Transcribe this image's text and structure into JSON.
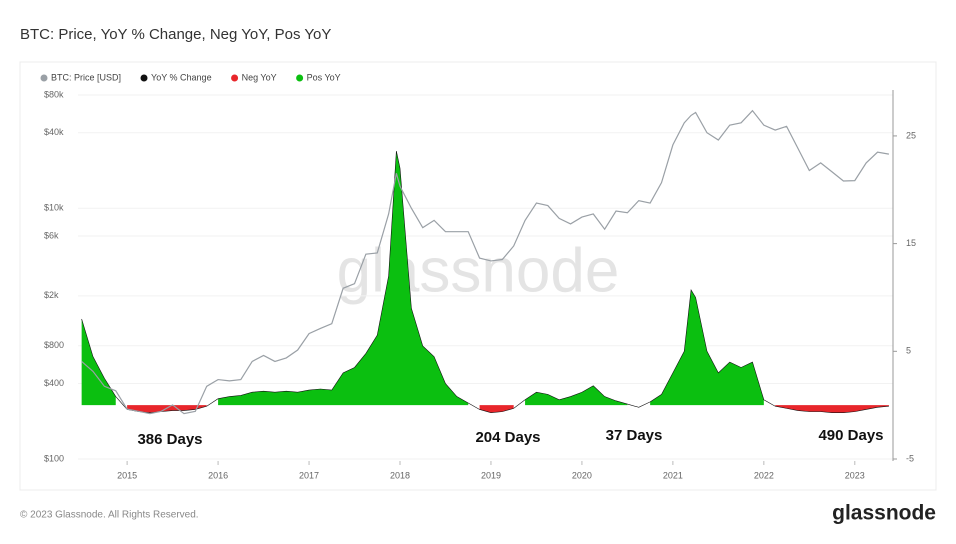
{
  "chart_data": {
    "type": "line",
    "title": "BTC: Price, YoY % Change, Neg YoY, Pos YoY",
    "x": [
      2014.5,
      2014.625,
      2014.75,
      2014.875,
      2015.0,
      2015.125,
      2015.25,
      2015.375,
      2015.5,
      2015.625,
      2015.75,
      2015.875,
      2016.0,
      2016.125,
      2016.25,
      2016.375,
      2016.5,
      2016.625,
      2016.75,
      2016.875,
      2017.0,
      2017.125,
      2017.25,
      2017.375,
      2017.5,
      2017.625,
      2017.75,
      2017.875,
      2017.96,
      2018.0,
      2018.125,
      2018.25,
      2018.375,
      2018.5,
      2018.625,
      2018.75,
      2018.875,
      2019.0,
      2019.125,
      2019.25,
      2019.375,
      2019.5,
      2019.625,
      2019.75,
      2019.875,
      2020.0,
      2020.125,
      2020.25,
      2020.375,
      2020.5,
      2020.625,
      2020.75,
      2020.875,
      2021.0,
      2021.125,
      2021.2,
      2021.25,
      2021.375,
      2021.5,
      2021.625,
      2021.75,
      2021.875,
      2022.0,
      2022.125,
      2022.25,
      2022.375,
      2022.5,
      2022.625,
      2022.75,
      2022.875,
      2023.0,
      2023.125,
      2023.25,
      2023.375
    ],
    "series": [
      {
        "name": "BTC: Price [USD]",
        "color": "#9aa0a6",
        "type": "line",
        "axis": "y",
        "values": [
          600,
          500,
          380,
          350,
          250,
          240,
          230,
          240,
          270,
          230,
          240,
          380,
          430,
          420,
          430,
          600,
          670,
          600,
          640,
          740,
          1000,
          1100,
          1200,
          2300,
          2500,
          4300,
          4400,
          9000,
          19000,
          15000,
          10000,
          7000,
          8000,
          6500,
          6500,
          6500,
          4000,
          3800,
          3900,
          5000,
          8000,
          11000,
          10500,
          8300,
          7500,
          8500,
          9000,
          6800,
          9500,
          9200,
          11500,
          11000,
          16000,
          32000,
          48000,
          55000,
          58000,
          40000,
          35000,
          46000,
          48000,
          60000,
          46000,
          42000,
          45000,
          30000,
          20000,
          23000,
          19500,
          16500,
          16600,
          23000,
          28000,
          27000
        ]
      },
      {
        "name": "YoY % Change",
        "color": "#111111",
        "type": "line",
        "axis": "y2",
        "values": [
          8.0,
          4.5,
          2.5,
          0.8,
          -0.4,
          -0.6,
          -0.7,
          -0.6,
          -0.5,
          -0.5,
          -0.4,
          -0.1,
          0.6,
          0.8,
          0.9,
          1.2,
          1.3,
          1.2,
          1.3,
          1.2,
          1.4,
          1.5,
          1.4,
          3.0,
          3.5,
          4.8,
          6.5,
          12,
          23.6,
          22,
          9,
          5.5,
          4.5,
          2.0,
          0.8,
          0.2,
          -0.4,
          -0.7,
          -0.6,
          -0.3,
          0.5,
          1.2,
          1.0,
          0.5,
          0.8,
          1.2,
          1.8,
          0.8,
          0.4,
          0.1,
          -0.2,
          0.3,
          1.0,
          3.0,
          5.0,
          10.7,
          10.0,
          5.0,
          3.0,
          4.0,
          3.5,
          4.0,
          0.5,
          -0.1,
          -0.3,
          -0.5,
          -0.6,
          -0.6,
          -0.7,
          -0.7,
          -0.6,
          -0.4,
          -0.2,
          -0.1
        ]
      },
      {
        "name": "Neg YoY",
        "color": "#e8262b",
        "type": "area",
        "axis": "y2",
        "values": [
          null,
          null,
          null,
          null,
          -0.4,
          -0.6,
          -0.7,
          -0.6,
          -0.5,
          -0.5,
          -0.4,
          -0.1,
          null,
          null,
          null,
          null,
          null,
          null,
          null,
          null,
          null,
          null,
          null,
          null,
          null,
          null,
          null,
          null,
          null,
          null,
          null,
          null,
          null,
          null,
          null,
          null,
          -0.4,
          -0.7,
          -0.6,
          -0.3,
          null,
          null,
          null,
          null,
          null,
          null,
          null,
          null,
          null,
          null,
          -0.2,
          null,
          null,
          null,
          null,
          null,
          null,
          null,
          null,
          null,
          null,
          null,
          null,
          -0.1,
          -0.3,
          -0.5,
          -0.6,
          -0.6,
          -0.7,
          -0.7,
          -0.6,
          -0.4,
          -0.2,
          -0.1
        ]
      },
      {
        "name": "Pos YoY",
        "color": "#0bbf10",
        "type": "area",
        "axis": "y2",
        "values": [
          8.0,
          4.5,
          2.5,
          0.8,
          null,
          null,
          null,
          null,
          null,
          null,
          null,
          null,
          0.6,
          0.8,
          0.9,
          1.2,
          1.3,
          1.2,
          1.3,
          1.2,
          1.4,
          1.5,
          1.4,
          3.0,
          3.5,
          4.8,
          6.5,
          12,
          23.6,
          22,
          9,
          5.5,
          4.5,
          2.0,
          0.8,
          0.2,
          null,
          null,
          null,
          null,
          0.5,
          1.2,
          1.0,
          0.5,
          0.8,
          1.2,
          1.8,
          0.8,
          0.4,
          0.1,
          null,
          0.3,
          1.0,
          3.0,
          5.0,
          10.7,
          10.0,
          5.0,
          3.0,
          4.0,
          3.5,
          4.0,
          0.5,
          null,
          null,
          null,
          null,
          null,
          null,
          null,
          null,
          null,
          null,
          null
        ]
      }
    ],
    "xlim": [
      2014.46,
      2023.42
    ],
    "xticks": [
      2015,
      2016,
      2017,
      2018,
      2019,
      2020,
      2021,
      2022,
      2023
    ],
    "ylim": [
      100,
      80000
    ],
    "log_y": true,
    "yticks": [
      {
        "value": 100,
        "label": "$100"
      },
      {
        "value": 400,
        "label": "$400"
      },
      {
        "value": 800,
        "label": "$800"
      },
      {
        "value": 2000,
        "label": "$2k"
      },
      {
        "value": 6000,
        "label": "$6k"
      },
      {
        "value": 10000,
        "label": "$10k"
      },
      {
        "value": 40000,
        "label": "$40k"
      },
      {
        "value": 80000,
        "label": "$80k"
      }
    ],
    "y2lim": [
      -5,
      28.8
    ],
    "y2ticks": [
      -5,
      5,
      15,
      25
    ],
    "grid": true,
    "legend": "top-left",
    "annotations": [
      "386 Days",
      "204 Days",
      "37 Days",
      "490 Days"
    ],
    "watermark": "glassnode"
  },
  "footer": {
    "copyright": "© 2023 Glassnode. All Rights Reserved.",
    "logo": "glassnode"
  }
}
